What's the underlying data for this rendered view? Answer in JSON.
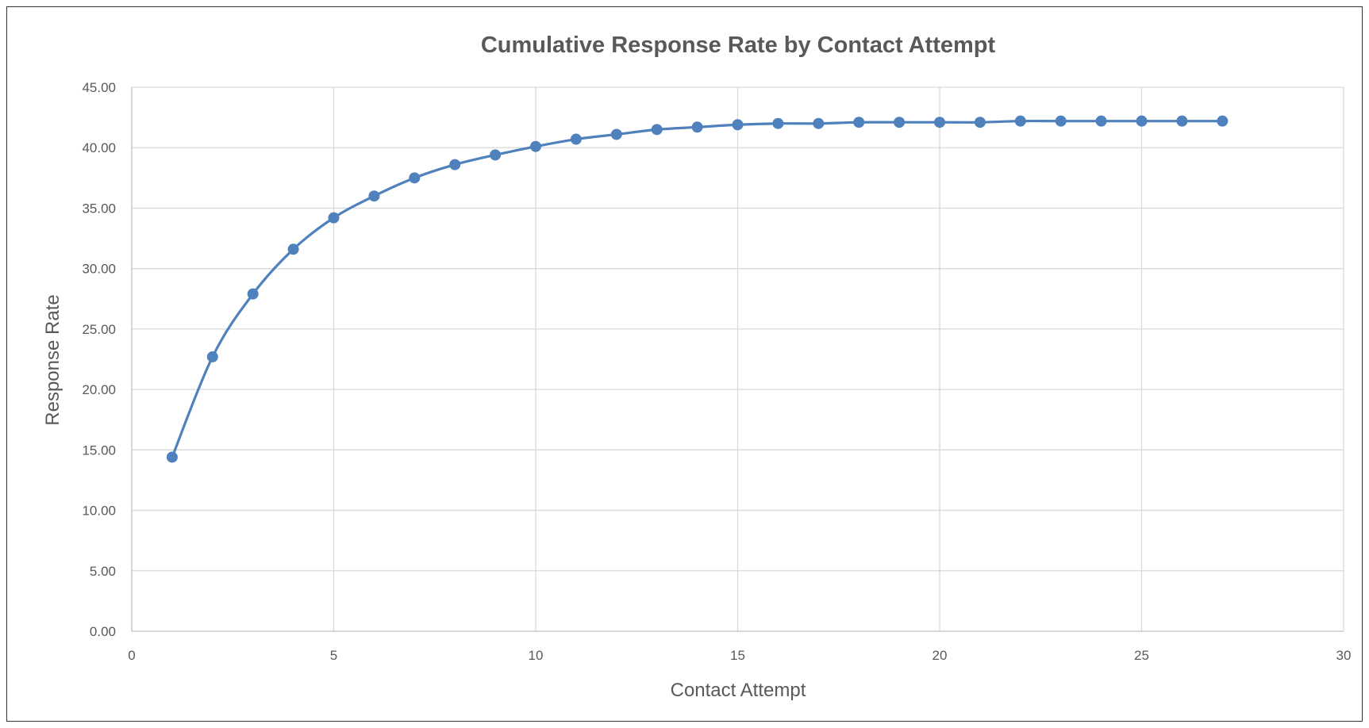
{
  "chart_data": {
    "type": "line",
    "title": "Cumulative Response Rate by Contact Attempt",
    "xlabel": "Contact Attempt",
    "ylabel": "Response Rate",
    "xlim": [
      0,
      30
    ],
    "ylim": [
      0,
      45
    ],
    "x_ticks": [
      0,
      5,
      10,
      15,
      20,
      25,
      30
    ],
    "y_ticks": [
      "0.00",
      "5.00",
      "10.00",
      "15.00",
      "20.00",
      "25.00",
      "30.00",
      "35.00",
      "40.00",
      "45.00"
    ],
    "grid": true,
    "legend": "none",
    "series": [
      {
        "color": "#4f81bd",
        "x": [
          1,
          2,
          3,
          4,
          5,
          6,
          7,
          8,
          9,
          10,
          11,
          12,
          13,
          14,
          15,
          16,
          17,
          18,
          19,
          20,
          21,
          22,
          23,
          24,
          25,
          26,
          27
        ],
        "y": [
          14.4,
          22.7,
          27.9,
          31.6,
          34.2,
          36.0,
          37.5,
          38.6,
          39.4,
          40.1,
          40.7,
          41.1,
          41.5,
          41.7,
          41.9,
          42.0,
          42.0,
          42.1,
          42.1,
          42.1,
          42.1,
          42.2,
          42.2,
          42.2,
          42.2,
          42.2,
          42.2
        ]
      }
    ]
  }
}
